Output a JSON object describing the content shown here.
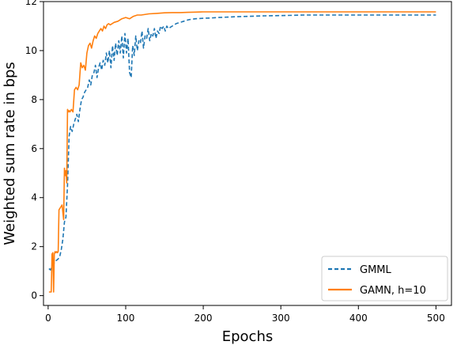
{
  "chart_data": {
    "type": "line",
    "title": "",
    "xlabel": "Epochs",
    "ylabel": "Weighted sum rate in bps",
    "xlim": [
      -6,
      520
    ],
    "ylim": [
      -0.4,
      12.0
    ],
    "xticks": [
      0,
      100,
      200,
      300,
      400,
      500
    ],
    "yticks": [
      0,
      2,
      4,
      6,
      8,
      10,
      12
    ],
    "xtick_labels": [
      "0",
      "100",
      "200",
      "300",
      "400",
      "500"
    ],
    "ytick_labels": [
      "0",
      "2",
      "4",
      "6",
      "8",
      "10",
      "12"
    ],
    "grid": false,
    "legend_position": "lower-right",
    "series": [
      {
        "name": "GMML",
        "color": "#1f77b4",
        "linestyle": "dashed",
        "x": [
          1,
          3,
          5,
          7,
          9,
          11,
          13,
          15,
          17,
          19,
          21,
          23,
          25,
          27,
          29,
          31,
          33,
          35,
          37,
          39,
          41,
          43,
          45,
          47,
          49,
          51,
          53,
          55,
          57,
          59,
          61,
          63,
          65,
          67,
          69,
          71,
          73,
          75,
          77,
          79,
          81,
          83,
          85,
          87,
          89,
          91,
          93,
          95,
          97,
          99,
          101,
          103,
          105,
          107,
          109,
          111,
          113,
          115,
          117,
          119,
          121,
          123,
          125,
          127,
          129,
          131,
          133,
          135,
          137,
          139,
          141,
          143,
          145,
          147,
          149,
          151,
          153,
          155,
          160,
          165,
          170,
          175,
          180,
          185,
          190,
          200,
          210,
          220,
          240,
          260,
          280,
          300,
          330,
          360,
          400,
          450,
          500
        ],
        "y": [
          1.1,
          1.05,
          1.2,
          1.3,
          1.4,
          1.45,
          1.5,
          1.6,
          1.9,
          2.3,
          3.0,
          3.2,
          4.5,
          6.5,
          6.9,
          6.7,
          7.0,
          7.2,
          7.4,
          7.1,
          7.6,
          8.0,
          8.1,
          8.3,
          8.4,
          8.5,
          8.8,
          8.6,
          9.0,
          9.1,
          9.4,
          8.9,
          9.3,
          9.5,
          9.2,
          9.6,
          9.4,
          9.9,
          9.5,
          10.0,
          9.3,
          10.2,
          9.6,
          10.3,
          9.8,
          10.4,
          9.9,
          10.6,
          9.7,
          10.7,
          9.9,
          10.5,
          9.1,
          8.9,
          10.2,
          9.8,
          10.6,
          10.0,
          10.4,
          10.3,
          10.8,
          10.1,
          10.6,
          10.5,
          10.9,
          10.4,
          10.7,
          10.6,
          10.9,
          10.5,
          10.8,
          10.7,
          11.0,
          10.9,
          11.0,
          10.8,
          11.0,
          10.9,
          11.0,
          11.1,
          11.15,
          11.2,
          11.25,
          11.28,
          11.3,
          11.32,
          11.33,
          11.35,
          11.38,
          11.4,
          11.42,
          11.43,
          11.45,
          11.45,
          11.45,
          11.45,
          11.45
        ]
      },
      {
        "name": "GAMN, h=10",
        "color": "#ff7f0e",
        "linestyle": "solid",
        "x": [
          1,
          4,
          5,
          6,
          7,
          8,
          9,
          10,
          11,
          12,
          13,
          14,
          16,
          18,
          20,
          21,
          22,
          23,
          24,
          25,
          26,
          27,
          28,
          30,
          32,
          34,
          36,
          38,
          40,
          42,
          44,
          46,
          48,
          50,
          52,
          54,
          56,
          58,
          60,
          62,
          64,
          66,
          68,
          70,
          72,
          74,
          76,
          78,
          80,
          85,
          90,
          95,
          100,
          105,
          110,
          115,
          120,
          130,
          140,
          150,
          160,
          170,
          180,
          190,
          200,
          220,
          250,
          300,
          350,
          400,
          450,
          500
        ],
        "y": [
          0.15,
          0.15,
          1.7,
          1.75,
          0.15,
          1.7,
          1.8,
          1.75,
          1.8,
          1.75,
          1.8,
          3.5,
          3.6,
          3.7,
          3.1,
          5.2,
          4.9,
          5.1,
          4.6,
          7.6,
          7.5,
          7.55,
          7.5,
          7.6,
          7.5,
          8.4,
          8.5,
          8.4,
          8.6,
          9.5,
          9.3,
          9.4,
          9.2,
          9.9,
          10.2,
          10.3,
          10.1,
          10.4,
          10.6,
          10.5,
          10.7,
          10.8,
          10.9,
          10.8,
          11.0,
          10.9,
          11.05,
          11.1,
          11.05,
          11.15,
          11.2,
          11.3,
          11.35,
          11.3,
          11.4,
          11.45,
          11.45,
          11.5,
          11.52,
          11.54,
          11.55,
          11.55,
          11.56,
          11.57,
          11.58,
          11.58,
          11.58,
          11.58,
          11.58,
          11.58,
          11.58,
          11.58
        ]
      }
    ]
  }
}
